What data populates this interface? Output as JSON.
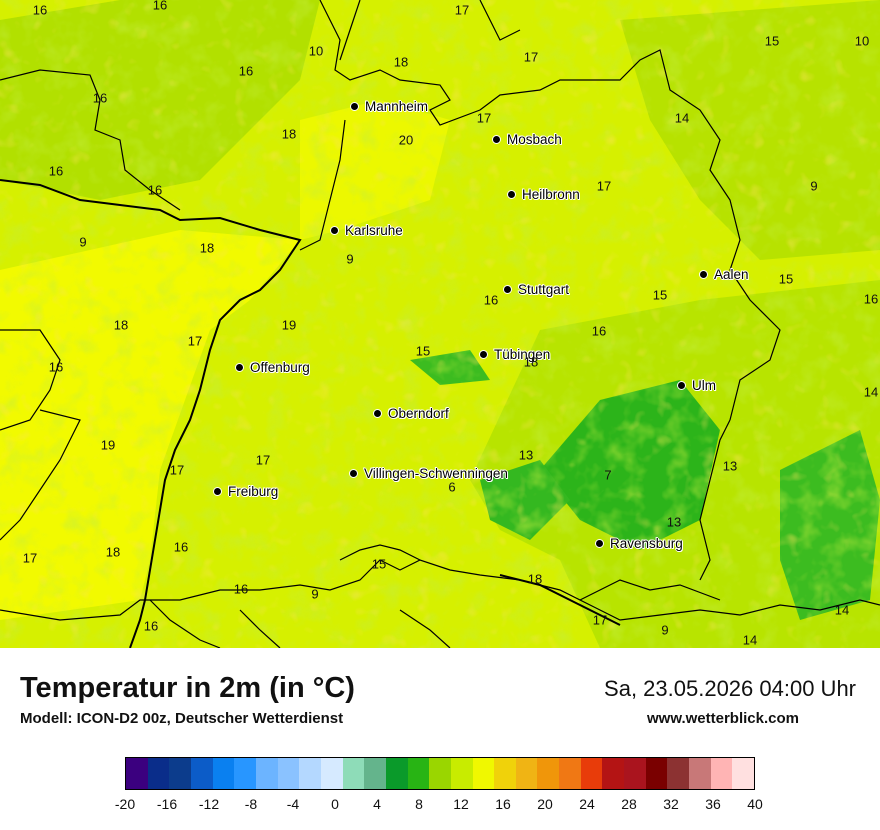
{
  "map": {
    "cities": [
      {
        "name": "Mannheim"
      },
      {
        "name": "Mosbach"
      },
      {
        "name": "Heilbronn"
      },
      {
        "name": "Karlsruhe"
      },
      {
        "name": "Stuttgart"
      },
      {
        "name": "Aalen"
      },
      {
        "name": "Offenburg"
      },
      {
        "name": "Tübingen"
      },
      {
        "name": "Ulm"
      },
      {
        "name": "Oberndorf"
      },
      {
        "name": "Villingen-Schwenningen"
      },
      {
        "name": "Freiburg"
      },
      {
        "name": "Ravensburg"
      }
    ],
    "temperature_labels": [
      "16",
      "16",
      "17",
      "10",
      "18",
      "17",
      "15",
      "10",
      "16",
      "16",
      "18",
      "20",
      "17",
      "14",
      "16",
      "16",
      "17",
      "9",
      "9",
      "18",
      "9",
      "15",
      "15",
      "16",
      "19",
      "18",
      "17",
      "15",
      "16",
      "16",
      "18",
      "16",
      "14",
      "19",
      "17",
      "17",
      "13",
      "6",
      "7",
      "13",
      "13",
      "17",
      "18",
      "16",
      "15",
      "18",
      "16",
      "9",
      "16",
      "17",
      "9",
      "14",
      "14"
    ],
    "colors": {
      "background_yellow": "#e8f500",
      "bright_yellow": "#f6ff00",
      "lime": "#c8ec00",
      "light_green": "#9ad600",
      "green": "#28b414",
      "dark_green": "#0a9a2a",
      "orange_yellow": "#f0c814",
      "border_line": "#000000"
    }
  },
  "footer": {
    "title": "Temperatur in 2m (in °C)",
    "model": "Modell: ICON-D2 00z, Deutscher Wetterdienst",
    "datetime": "Sa, 23.05.2026 04:00 Uhr",
    "website": "www.wetterblick.com"
  },
  "legend": {
    "colors": [
      "#3b007f",
      "#0a2d8a",
      "#0c3c8c",
      "#0c5cc8",
      "#0a80f0",
      "#2896ff",
      "#6cb4ff",
      "#8ac2ff",
      "#b4d8ff",
      "#d6eaff",
      "#8edcb8",
      "#64b48c",
      "#0a9a2a",
      "#28b414",
      "#9ad600",
      "#c8ec00",
      "#f0f800",
      "#f0d20a",
      "#f0b414",
      "#f0960a",
      "#f07814",
      "#e83c0a",
      "#b41414",
      "#aa141e",
      "#7a0000",
      "#8c3232",
      "#c87878",
      "#ffb4b4",
      "#ffe0e0"
    ],
    "ticks": [
      "-20",
      "-16",
      "-12",
      "-8",
      "-4",
      "0",
      "4",
      "8",
      "12",
      "16",
      "20",
      "24",
      "28",
      "32",
      "36",
      "40"
    ]
  }
}
